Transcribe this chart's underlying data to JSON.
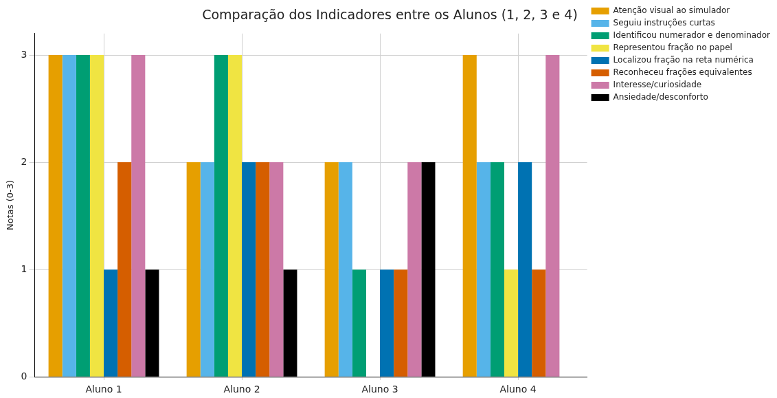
{
  "chart_data": {
    "type": "bar",
    "title": "Comparação dos Indicadores entre os Alunos (1, 2, 3 e 4)",
    "ylabel": "Notas (0-3)",
    "categories": [
      "Aluno 1",
      "Aluno 2",
      "Aluno 3",
      "Aluno 4"
    ],
    "series": [
      {
        "name": "Atenção visual ao simulador",
        "color": "#e69f00",
        "values": [
          3,
          2,
          2,
          3
        ]
      },
      {
        "name": "Seguiu instruções curtas",
        "color": "#56b4e9",
        "values": [
          3,
          2,
          2,
          2
        ]
      },
      {
        "name": "Identificou numerador e denominador",
        "color": "#009e73",
        "values": [
          3,
          3,
          1,
          2
        ]
      },
      {
        "name": "Representou fração no papel",
        "color": "#f0e442",
        "values": [
          3,
          3,
          0,
          1
        ]
      },
      {
        "name": "Localizou fração na reta numérica",
        "color": "#0072b2",
        "values": [
          1,
          2,
          1,
          2
        ]
      },
      {
        "name": "Reconheceu frações equivalentes",
        "color": "#d55e00",
        "values": [
          2,
          2,
          1,
          1
        ]
      },
      {
        "name": "Interesse/curiosidade",
        "color": "#cc79a7",
        "values": [
          3,
          2,
          2,
          3
        ]
      },
      {
        "name": "Ansiedade/desconforto",
        "color": "#000000",
        "values": [
          1,
          1,
          2,
          0
        ]
      }
    ],
    "ylim": [
      0,
      3.2
    ],
    "yticks": [
      0,
      1,
      2,
      3
    ],
    "grid": true,
    "legend": "top right"
  }
}
